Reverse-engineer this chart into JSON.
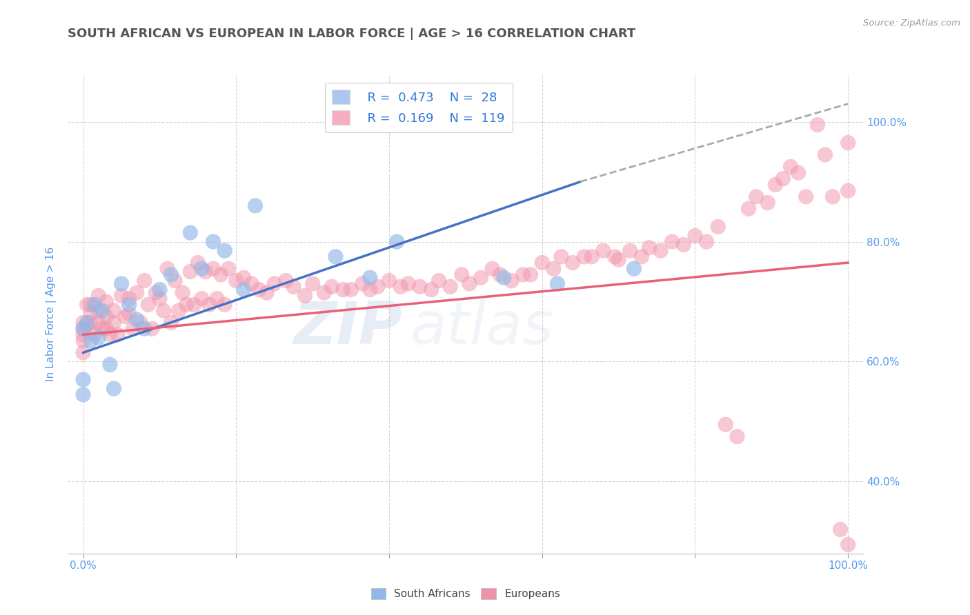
{
  "title": "SOUTH AFRICAN VS EUROPEAN IN LABOR FORCE | AGE > 16 CORRELATION CHART",
  "source_text": "Source: ZipAtlas.com",
  "ylabel": "In Labor Force | Age > 16",
  "xlim": [
    -0.02,
    1.02
  ],
  "ylim": [
    0.28,
    1.08
  ],
  "x_ticks": [
    0.0,
    0.2,
    0.4,
    0.6,
    0.8,
    1.0
  ],
  "x_tick_labels": [
    "0.0%",
    "",
    "",
    "",
    "",
    "100.0%"
  ],
  "y_ticks": [
    0.4,
    0.6,
    0.8,
    1.0
  ],
  "y_tick_labels": [
    "40.0%",
    "60.0%",
    "80.0%",
    "100.0%"
  ],
  "watermark_zip": "ZIP",
  "watermark_atlas": "atlas",
  "legend_entries": [
    {
      "label": "South Africans",
      "color": "#adc6ef",
      "R": 0.473,
      "N": 28
    },
    {
      "label": "Europeans",
      "color": "#f5afc0",
      "R": 0.169,
      "N": 119
    }
  ],
  "south_african_color": "#92b8e8",
  "european_color": "#f093aa",
  "sa_trendline_color": "#4472c4",
  "eu_trendline_color": "#e8607a",
  "sa_trendline_dashed_color": "#aaaaaa",
  "background_color": "#ffffff",
  "grid_color": "#cccccc",
  "title_color": "#555555",
  "axis_label_color": "#5599ee",
  "tick_label_color": "#5599ee",
  "south_african_x": [
    0.0,
    0.0,
    0.0,
    0.005,
    0.01,
    0.015,
    0.02,
    0.025,
    0.035,
    0.04,
    0.05,
    0.06,
    0.07,
    0.08,
    0.1,
    0.115,
    0.14,
    0.155,
    0.17,
    0.185,
    0.21,
    0.225,
    0.33,
    0.375,
    0.41,
    0.55,
    0.62,
    0.72
  ],
  "south_african_y": [
    0.655,
    0.57,
    0.545,
    0.665,
    0.635,
    0.695,
    0.64,
    0.685,
    0.595,
    0.555,
    0.73,
    0.695,
    0.67,
    0.655,
    0.72,
    0.745,
    0.815,
    0.755,
    0.8,
    0.785,
    0.72,
    0.86,
    0.775,
    0.74,
    0.8,
    0.74,
    0.73,
    0.755
  ],
  "european_x": [
    0.0,
    0.0,
    0.0,
    0.0,
    0.0,
    0.005,
    0.005,
    0.01,
    0.01,
    0.01,
    0.015,
    0.02,
    0.02,
    0.02,
    0.025,
    0.03,
    0.03,
    0.03,
    0.035,
    0.04,
    0.04,
    0.045,
    0.05,
    0.055,
    0.06,
    0.06,
    0.065,
    0.07,
    0.075,
    0.08,
    0.085,
    0.09,
    0.095,
    0.1,
    0.105,
    0.11,
    0.115,
    0.12,
    0.125,
    0.13,
    0.135,
    0.14,
    0.145,
    0.15,
    0.155,
    0.16,
    0.165,
    0.17,
    0.175,
    0.18,
    0.185,
    0.19,
    0.2,
    0.21,
    0.22,
    0.23,
    0.24,
    0.25,
    0.265,
    0.275,
    0.29,
    0.3,
    0.315,
    0.325,
    0.34,
    0.35,
    0.365,
    0.375,
    0.385,
    0.4,
    0.415,
    0.425,
    0.44,
    0.455,
    0.465,
    0.48,
    0.495,
    0.505,
    0.52,
    0.535,
    0.545,
    0.56,
    0.575,
    0.585,
    0.6,
    0.615,
    0.625,
    0.64,
    0.655,
    0.665,
    0.68,
    0.695,
    0.7,
    0.715,
    0.73,
    0.74,
    0.755,
    0.77,
    0.785,
    0.8,
    0.815,
    0.83,
    0.84,
    0.855,
    0.87,
    0.88,
    0.895,
    0.905,
    0.915,
    0.925,
    0.935,
    0.945,
    0.96,
    0.97,
    0.98,
    0.99,
    1.0,
    1.0,
    1.0
  ],
  "european_y": [
    0.665,
    0.655,
    0.645,
    0.635,
    0.615,
    0.695,
    0.66,
    0.695,
    0.68,
    0.665,
    0.645,
    0.71,
    0.685,
    0.665,
    0.655,
    0.7,
    0.675,
    0.655,
    0.645,
    0.685,
    0.665,
    0.645,
    0.71,
    0.675,
    0.705,
    0.68,
    0.655,
    0.715,
    0.665,
    0.735,
    0.695,
    0.655,
    0.715,
    0.705,
    0.685,
    0.755,
    0.665,
    0.735,
    0.685,
    0.715,
    0.695,
    0.75,
    0.695,
    0.765,
    0.705,
    0.75,
    0.695,
    0.755,
    0.705,
    0.745,
    0.695,
    0.755,
    0.735,
    0.74,
    0.73,
    0.72,
    0.715,
    0.73,
    0.735,
    0.725,
    0.71,
    0.73,
    0.715,
    0.725,
    0.72,
    0.72,
    0.73,
    0.72,
    0.725,
    0.735,
    0.725,
    0.73,
    0.725,
    0.72,
    0.735,
    0.725,
    0.745,
    0.73,
    0.74,
    0.755,
    0.745,
    0.735,
    0.745,
    0.745,
    0.765,
    0.755,
    0.775,
    0.765,
    0.775,
    0.775,
    0.785,
    0.775,
    0.77,
    0.785,
    0.775,
    0.79,
    0.785,
    0.8,
    0.795,
    0.81,
    0.8,
    0.825,
    0.495,
    0.475,
    0.855,
    0.875,
    0.865,
    0.895,
    0.905,
    0.925,
    0.915,
    0.875,
    0.995,
    0.945,
    0.875,
    0.32,
    0.295,
    0.965,
    0.885
  ]
}
